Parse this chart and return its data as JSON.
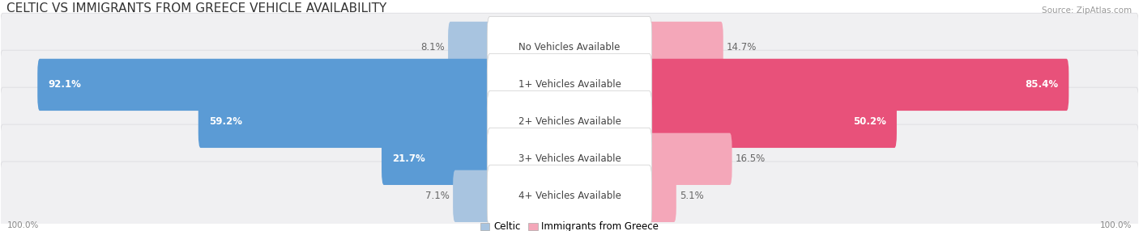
{
  "title": "CELTIC VS IMMIGRANTS FROM GREECE VEHICLE AVAILABILITY",
  "source": "Source: ZipAtlas.com",
  "categories": [
    "No Vehicles Available",
    "1+ Vehicles Available",
    "2+ Vehicles Available",
    "3+ Vehicles Available",
    "4+ Vehicles Available"
  ],
  "celtic_values": [
    8.1,
    92.1,
    59.2,
    21.7,
    7.1
  ],
  "greece_values": [
    14.7,
    85.4,
    50.2,
    16.5,
    5.1
  ],
  "celtic_color": "#a8c4e0",
  "celtic_color_bold": "#5b9bd5",
  "greece_color": "#f4a7b9",
  "greece_color_bold": "#e8517a",
  "row_bg": "#f0f0f2",
  "max_value": 100.0,
  "legend_celtic": "Celtic",
  "legend_greece": "Immigrants from Greece",
  "title_fontsize": 11,
  "label_fontsize": 8.5,
  "bold_threshold": 20
}
